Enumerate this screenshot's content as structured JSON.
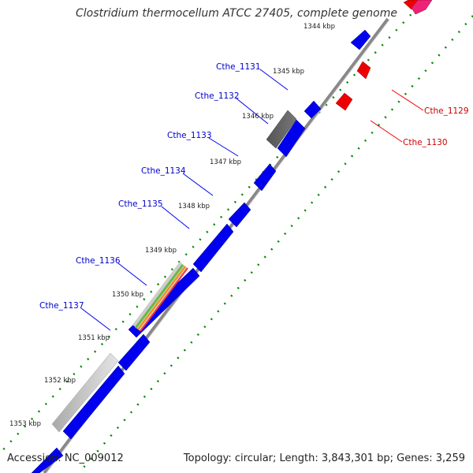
{
  "title": "Clostridium thermocellum ATCC 27405, complete genome",
  "footer": {
    "accession": "Accession: NC_009012",
    "summary": "Topology: circular; Length: 3,843,301 bp; Genes: 3,259"
  },
  "colors": {
    "forward_cds": "#0000ee",
    "reverse_cds": "#ee0000",
    "backbone": "#888888",
    "tick_dots": "#008800",
    "forward_label": "#0000cc",
    "reverse_label": "#cc0000"
  },
  "kbp_ticks": [
    "1344 kbp",
    "1345 kbp",
    "1346 kbp",
    "1347 kbp",
    "1348 kbp",
    "1349 kbp",
    "1350 kbp",
    "1351 kbp",
    "1352 kbp",
    "1353 kbp"
  ],
  "gene_labels_forward": [
    "Cthe_1131",
    "Cthe_1132",
    "Cthe_1133",
    "Cthe_1134",
    "Cthe_1135",
    "Cthe_1136",
    "Cthe_1137"
  ],
  "gene_labels_reverse": [
    "Cthe_1129",
    "Cthe_1130"
  ]
}
